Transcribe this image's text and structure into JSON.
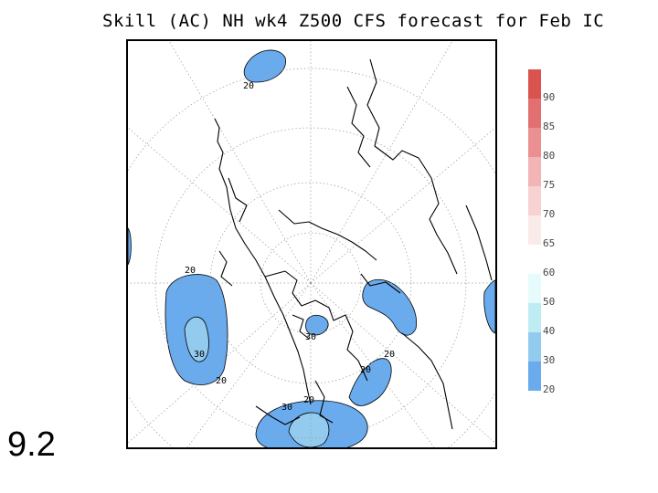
{
  "title": "Skill (AC) NH wk4 Z500 CFS forecast for Feb IC",
  "slide_number": "9.2",
  "contour_labels": [
    "20",
    "20",
    "30",
    "20",
    "30",
    "20",
    "20",
    "20",
    "30"
  ],
  "colorbar": {
    "labels": [
      "90",
      "85",
      "80",
      "75",
      "70",
      "65",
      "60",
      "50",
      "40",
      "30",
      "20"
    ],
    "colors": [
      "#d9534f",
      "#e27070",
      "#ea9090",
      "#f2b4b4",
      "#f8d2d2",
      "#fbeaea",
      "#ffffff",
      "#e6fbfb",
      "#bfecf3",
      "#93cbef",
      "#6aabed"
    ]
  }
}
